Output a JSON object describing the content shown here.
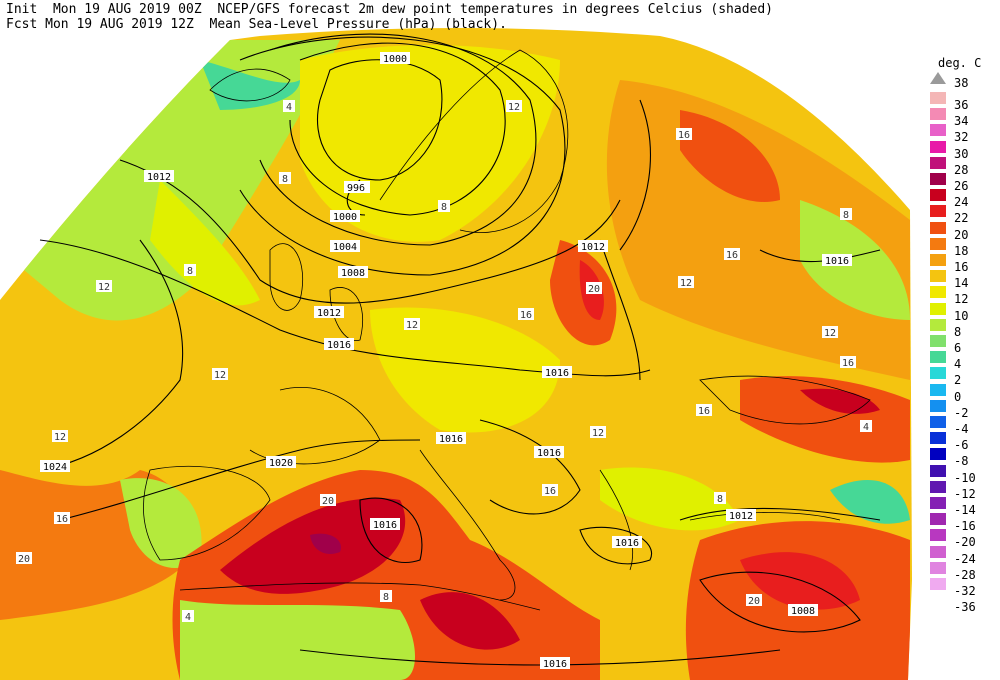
{
  "header": {
    "line1": "Init  Mon 19 AUG 2019 00Z  NCEP/GFS forecast 2m dew point temperatures in degrees Celcius (shaded)",
    "line2": "Fcst Mon 19 AUG 2019 12Z  Mean Sea-Level Pressure (hPa) (black)."
  },
  "legend": {
    "title": "deg. C",
    "top_label": "38",
    "colors": [
      "#f4b6b6",
      "#f48ab4",
      "#e860c8",
      "#e81aa8",
      "#c0107a",
      "#a0004a",
      "#c8001e",
      "#e81e1e",
      "#f05010",
      "#f47a10",
      "#f4a010",
      "#f4c410",
      "#f0e800",
      "#e0f000",
      "#b4ea3c",
      "#80e06c",
      "#46d896",
      "#28d8d8",
      "#1ab8f0",
      "#1490f0",
      "#1060e8",
      "#0830d8",
      "#0000c0",
      "#4010b0",
      "#6018b0",
      "#8420b4",
      "#a028b0",
      "#b838c0",
      "#d060d0",
      "#e084e0",
      "#f0aaf0"
    ],
    "labels": [
      "36",
      "34",
      "32",
      "30",
      "28",
      "26",
      "24",
      "22",
      "20",
      "18",
      "16",
      "14",
      "12",
      "10",
      "8",
      "6",
      "4",
      "2",
      "0",
      "-2",
      "-4",
      "-6",
      "-8",
      "-10",
      "-12",
      "-14",
      "-16",
      "-20",
      "-24",
      "-28",
      "-32",
      "-36"
    ]
  },
  "isobars": [
    "1000",
    "996",
    "1000",
    "1004",
    "1008",
    "1012",
    "1012",
    "1016",
    "1016",
    "1016",
    "1016",
    "1016",
    "1016",
    "1016",
    "1012",
    "1008",
    "1024",
    "1020",
    "1016",
    "1012"
  ],
  "dewpoint_labels": [
    "4",
    "8",
    "12",
    "16",
    "20",
    "8",
    "12",
    "16",
    "12",
    "16",
    "12",
    "8",
    "4",
    "20",
    "12",
    "8",
    "16",
    "12",
    "16",
    "16",
    "12",
    "8",
    "4",
    "16",
    "20",
    "20",
    "12",
    "8"
  ]
}
